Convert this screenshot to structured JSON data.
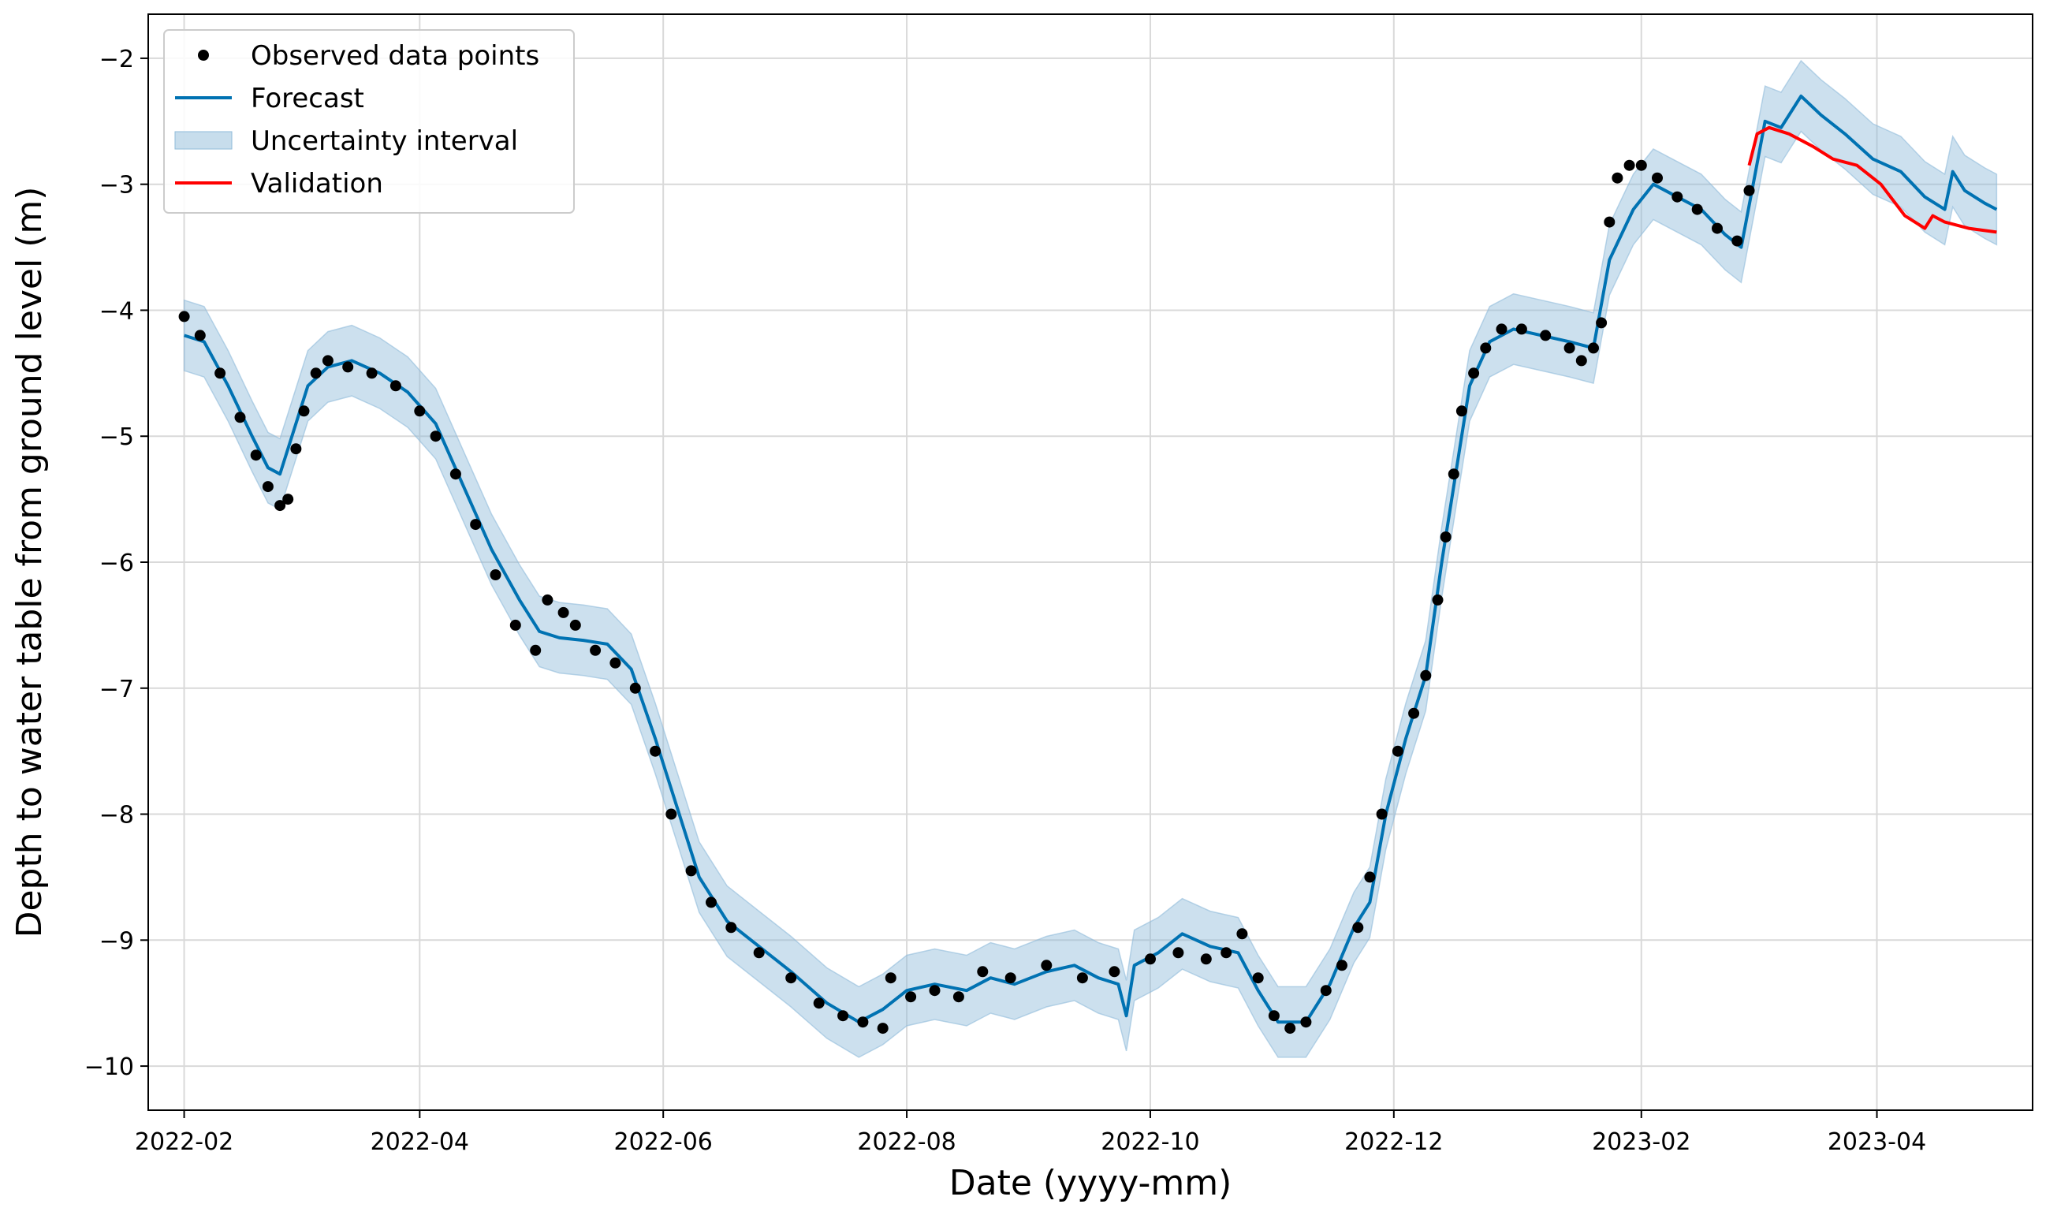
{
  "chart_data": {
    "type": "line",
    "xlabel": "Date (yyyy-mm)",
    "ylabel": "Depth to water table from ground level (m)",
    "x_ticks": [
      "2022-02",
      "2022-04",
      "2022-06",
      "2022-08",
      "2022-10",
      "2022-12",
      "2023-02",
      "2023-04"
    ],
    "y_ticks": [
      "−2",
      "−3",
      "−4",
      "−5",
      "−6",
      "−7",
      "−8",
      "−9",
      "−10"
    ],
    "xlim": [
      "2022-01-23",
      "2023-05-10"
    ],
    "ylim": [
      -10.35,
      -1.65
    ],
    "grid": true,
    "legend_position": "top-left",
    "colors": {
      "observed": "#000000",
      "forecast": "#0072B2",
      "band": "#8FBBDA",
      "validation": "#FF0000"
    },
    "legend": [
      "Observed data points",
      "Forecast",
      "Uncertainty interval",
      "Validation"
    ],
    "series": [
      {
        "name": "Observed data points",
        "kind": "scatter",
        "points": [
          [
            "2022-02-01",
            -4.05
          ],
          [
            "2022-02-05",
            -4.2
          ],
          [
            "2022-02-10",
            -4.5
          ],
          [
            "2022-02-15",
            -4.85
          ],
          [
            "2022-02-19",
            -5.15
          ],
          [
            "2022-02-22",
            -5.4
          ],
          [
            "2022-02-25",
            -5.55
          ],
          [
            "2022-02-27",
            -5.5
          ],
          [
            "2022-03-01",
            -5.1
          ],
          [
            "2022-03-03",
            -4.8
          ],
          [
            "2022-03-06",
            -4.5
          ],
          [
            "2022-03-09",
            -4.4
          ],
          [
            "2022-03-14",
            -4.45
          ],
          [
            "2022-03-20",
            -4.5
          ],
          [
            "2022-03-26",
            -4.6
          ],
          [
            "2022-04-01",
            -4.8
          ],
          [
            "2022-04-05",
            -5.0
          ],
          [
            "2022-04-10",
            -5.3
          ],
          [
            "2022-04-15",
            -5.7
          ],
          [
            "2022-04-20",
            -6.1
          ],
          [
            "2022-04-25",
            -6.5
          ],
          [
            "2022-04-30",
            -6.7
          ],
          [
            "2022-05-03",
            -6.3
          ],
          [
            "2022-05-07",
            -6.4
          ],
          [
            "2022-05-10",
            -6.5
          ],
          [
            "2022-05-15",
            -6.7
          ],
          [
            "2022-05-20",
            -6.8
          ],
          [
            "2022-05-25",
            -7.0
          ],
          [
            "2022-05-30",
            -7.5
          ],
          [
            "2022-06-03",
            -8.0
          ],
          [
            "2022-06-08",
            -8.45
          ],
          [
            "2022-06-13",
            -8.7
          ],
          [
            "2022-06-18",
            -8.9
          ],
          [
            "2022-06-25",
            -9.1
          ],
          [
            "2022-07-03",
            -9.3
          ],
          [
            "2022-07-10",
            -9.5
          ],
          [
            "2022-07-16",
            -9.6
          ],
          [
            "2022-07-21",
            -9.65
          ],
          [
            "2022-07-26",
            -9.7
          ],
          [
            "2022-07-28",
            -9.3
          ],
          [
            "2022-08-02",
            -9.45
          ],
          [
            "2022-08-08",
            -9.4
          ],
          [
            "2022-08-14",
            -9.45
          ],
          [
            "2022-08-20",
            -9.25
          ],
          [
            "2022-08-27",
            -9.3
          ],
          [
            "2022-09-05",
            -9.2
          ],
          [
            "2022-09-14",
            -9.3
          ],
          [
            "2022-09-22",
            -9.25
          ],
          [
            "2022-10-01",
            -9.15
          ],
          [
            "2022-10-08",
            -9.1
          ],
          [
            "2022-10-15",
            -9.15
          ],
          [
            "2022-10-20",
            -9.1
          ],
          [
            "2022-10-24",
            -8.95
          ],
          [
            "2022-10-28",
            -9.3
          ],
          [
            "2022-11-01",
            -9.6
          ],
          [
            "2022-11-05",
            -9.7
          ],
          [
            "2022-11-09",
            -9.65
          ],
          [
            "2022-11-14",
            -9.4
          ],
          [
            "2022-11-18",
            -9.2
          ],
          [
            "2022-11-22",
            -8.9
          ],
          [
            "2022-11-25",
            -8.5
          ],
          [
            "2022-11-28",
            -8.0
          ],
          [
            "2022-12-02",
            -7.5
          ],
          [
            "2022-12-06",
            -7.2
          ],
          [
            "2022-12-09",
            -6.9
          ],
          [
            "2022-12-12",
            -6.3
          ],
          [
            "2022-12-14",
            -5.8
          ],
          [
            "2022-12-16",
            -5.3
          ],
          [
            "2022-12-18",
            -4.8
          ],
          [
            "2022-12-21",
            -4.5
          ],
          [
            "2022-12-24",
            -4.3
          ],
          [
            "2022-12-28",
            -4.15
          ],
          [
            "2023-01-02",
            -4.15
          ],
          [
            "2023-01-08",
            -4.2
          ],
          [
            "2023-01-14",
            -4.3
          ],
          [
            "2023-01-17",
            -4.4
          ],
          [
            "2023-01-20",
            -4.3
          ],
          [
            "2023-01-22",
            -4.1
          ],
          [
            "2023-01-24",
            -3.3
          ],
          [
            "2023-01-26",
            -2.95
          ],
          [
            "2023-01-29",
            -2.85
          ],
          [
            "2023-02-01",
            -2.85
          ],
          [
            "2023-02-05",
            -2.95
          ],
          [
            "2023-02-10",
            -3.1
          ],
          [
            "2023-02-15",
            -3.2
          ],
          [
            "2023-02-20",
            -3.35
          ],
          [
            "2023-02-25",
            -3.45
          ],
          [
            "2023-02-28",
            -3.05
          ]
        ]
      },
      {
        "name": "Forecast",
        "kind": "line",
        "points": [
          [
            "2022-02-01",
            -4.2
          ],
          [
            "2022-02-06",
            -4.25
          ],
          [
            "2022-02-12",
            -4.6
          ],
          [
            "2022-02-18",
            -5.0
          ],
          [
            "2022-02-22",
            -5.25
          ],
          [
            "2022-02-25",
            -5.3
          ],
          [
            "2022-02-28",
            -5.0
          ],
          [
            "2022-03-04",
            -4.6
          ],
          [
            "2022-03-09",
            -4.45
          ],
          [
            "2022-03-15",
            -4.4
          ],
          [
            "2022-03-22",
            -4.5
          ],
          [
            "2022-03-29",
            -4.65
          ],
          [
            "2022-04-05",
            -4.9
          ],
          [
            "2022-04-12",
            -5.4
          ],
          [
            "2022-04-19",
            -5.9
          ],
          [
            "2022-04-26",
            -6.3
          ],
          [
            "2022-05-01",
            -6.55
          ],
          [
            "2022-05-06",
            -6.6
          ],
          [
            "2022-05-12",
            -6.62
          ],
          [
            "2022-05-18",
            -6.65
          ],
          [
            "2022-05-24",
            -6.85
          ],
          [
            "2022-05-30",
            -7.4
          ],
          [
            "2022-06-05",
            -8.0
          ],
          [
            "2022-06-10",
            -8.5
          ],
          [
            "2022-06-17",
            -8.85
          ],
          [
            "2022-06-25",
            -9.05
          ],
          [
            "2022-07-03",
            -9.25
          ],
          [
            "2022-07-12",
            -9.5
          ],
          [
            "2022-07-20",
            -9.65
          ],
          [
            "2022-07-26",
            -9.55
          ],
          [
            "2022-08-01",
            -9.4
          ],
          [
            "2022-08-08",
            -9.35
          ],
          [
            "2022-08-16",
            -9.4
          ],
          [
            "2022-08-22",
            -9.3
          ],
          [
            "2022-08-28",
            -9.35
          ],
          [
            "2022-09-05",
            -9.25
          ],
          [
            "2022-09-12",
            -9.2
          ],
          [
            "2022-09-18",
            -9.3
          ],
          [
            "2022-09-23",
            -9.35
          ],
          [
            "2022-09-25",
            -9.6
          ],
          [
            "2022-09-27",
            -9.2
          ],
          [
            "2022-10-03",
            -9.1
          ],
          [
            "2022-10-09",
            -8.95
          ],
          [
            "2022-10-16",
            -9.05
          ],
          [
            "2022-10-23",
            -9.1
          ],
          [
            "2022-10-28",
            -9.4
          ],
          [
            "2022-11-02",
            -9.65
          ],
          [
            "2022-11-09",
            -9.65
          ],
          [
            "2022-11-15",
            -9.35
          ],
          [
            "2022-11-21",
            -8.9
          ],
          [
            "2022-11-25",
            -8.7
          ],
          [
            "2022-11-29",
            -8.0
          ],
          [
            "2022-12-04",
            -7.4
          ],
          [
            "2022-12-09",
            -6.9
          ],
          [
            "2022-12-13",
            -6.0
          ],
          [
            "2022-12-17",
            -5.2
          ],
          [
            "2022-12-20",
            -4.6
          ],
          [
            "2022-12-25",
            -4.25
          ],
          [
            "2022-12-31",
            -4.15
          ],
          [
            "2023-01-07",
            -4.2
          ],
          [
            "2023-01-14",
            -4.25
          ],
          [
            "2023-01-20",
            -4.3
          ],
          [
            "2023-01-24",
            -3.6
          ],
          [
            "2023-01-30",
            -3.2
          ],
          [
            "2023-02-04",
            -3.0
          ],
          [
            "2023-02-10",
            -3.1
          ],
          [
            "2023-02-16",
            -3.2
          ],
          [
            "2023-02-22",
            -3.4
          ],
          [
            "2023-02-26",
            -3.5
          ],
          [
            "2023-03-01",
            -3.0
          ],
          [
            "2023-03-04",
            -2.5
          ],
          [
            "2023-03-08",
            -2.55
          ],
          [
            "2023-03-13",
            -2.3
          ],
          [
            "2023-03-18",
            -2.45
          ],
          [
            "2023-03-24",
            -2.6
          ],
          [
            "2023-03-31",
            -2.8
          ],
          [
            "2023-04-07",
            -2.9
          ],
          [
            "2023-04-13",
            -3.1
          ],
          [
            "2023-04-18",
            -3.2
          ],
          [
            "2023-04-20",
            -2.9
          ],
          [
            "2023-04-23",
            -3.05
          ],
          [
            "2023-04-28",
            -3.15
          ],
          [
            "2023-05-01",
            -3.2
          ]
        ]
      },
      {
        "name": "Uncertainty interval",
        "kind": "band",
        "band_halfwidth": 0.28,
        "points_from": "Forecast"
      },
      {
        "name": "Validation",
        "kind": "line",
        "points": [
          [
            "2023-02-28",
            -2.85
          ],
          [
            "2023-03-02",
            -2.6
          ],
          [
            "2023-03-05",
            -2.55
          ],
          [
            "2023-03-10",
            -2.6
          ],
          [
            "2023-03-16",
            -2.7
          ],
          [
            "2023-03-21",
            -2.8
          ],
          [
            "2023-03-27",
            -2.85
          ],
          [
            "2023-04-02",
            -3.0
          ],
          [
            "2023-04-08",
            -3.25
          ],
          [
            "2023-04-13",
            -3.35
          ],
          [
            "2023-04-15",
            -3.25
          ],
          [
            "2023-04-18",
            -3.3
          ],
          [
            "2023-04-24",
            -3.35
          ],
          [
            "2023-05-01",
            -3.38
          ]
        ]
      }
    ]
  }
}
